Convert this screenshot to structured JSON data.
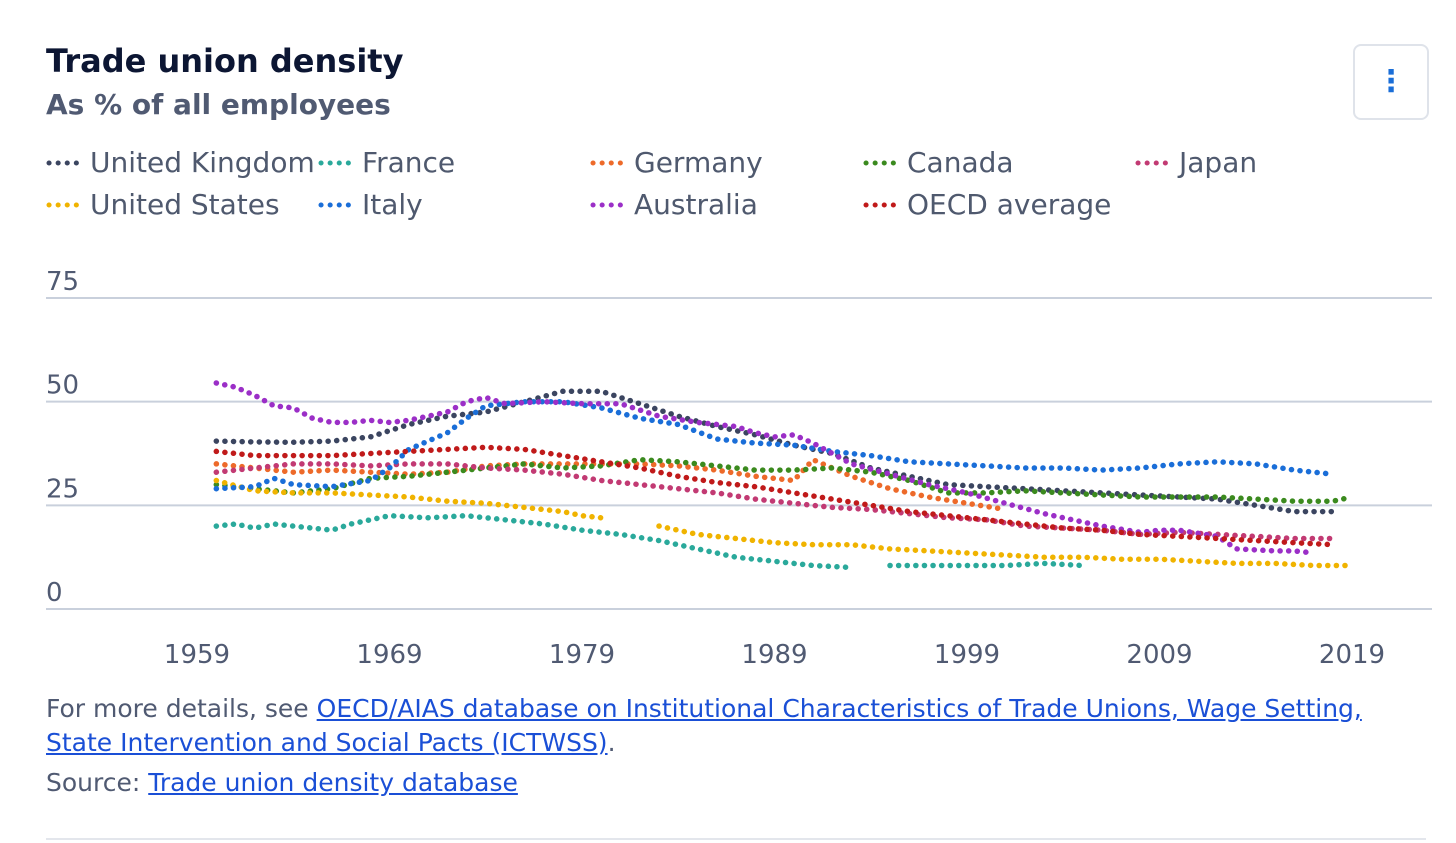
{
  "header": {
    "title": "Trade union density",
    "subtitle": "As % of all employees",
    "menu_icon": "more-vertical-icon",
    "menu_glyph": "⋮"
  },
  "legend": [
    {
      "name": "United Kingdom",
      "color": "#3b4560"
    },
    {
      "name": "France",
      "color": "#2aa99b"
    },
    {
      "name": "Germany",
      "color": "#ed6a2a"
    },
    {
      "name": "Canada",
      "color": "#3b8a1e"
    },
    {
      "name": "Japan",
      "color": "#c23a73"
    },
    {
      "name": "United States",
      "color": "#f0b300"
    },
    {
      "name": "Italy",
      "color": "#1a6ed8"
    },
    {
      "name": "Australia",
      "color": "#9b2fc7"
    },
    {
      "name": "OECD average",
      "color": "#c01a1a"
    }
  ],
  "chart_data": {
    "type": "line",
    "title": "Trade union density",
    "subtitle": "As % of all employees",
    "xlabel": "",
    "ylabel": "",
    "xlim": [
      1959,
      2019
    ],
    "ylim": [
      0,
      75
    ],
    "yticks": [
      0,
      25,
      50,
      75
    ],
    "xticks": [
      1959,
      1969,
      1979,
      1989,
      1999,
      2009,
      2019
    ],
    "grid": true,
    "line_style": "dotted",
    "legend_position": "top",
    "series": [
      {
        "name": "United Kingdom",
        "color": "#3b4560",
        "points": [
          [
            1960,
            40.5
          ],
          [
            1962,
            40.3
          ],
          [
            1964,
            40.2
          ],
          [
            1966,
            40.5
          ],
          [
            1968,
            41.5
          ],
          [
            1970,
            44.5
          ],
          [
            1972,
            46.5
          ],
          [
            1974,
            47.5
          ],
          [
            1976,
            50
          ],
          [
            1978,
            52.5
          ],
          [
            1980,
            52.5
          ],
          [
            1982,
            49.5
          ],
          [
            1984,
            46.5
          ],
          [
            1986,
            44
          ],
          [
            1988,
            42
          ],
          [
            1990,
            39.5
          ],
          [
            1992,
            37.5
          ],
          [
            1994,
            34
          ],
          [
            1996,
            32
          ],
          [
            1998,
            30
          ],
          [
            2000,
            29.5
          ],
          [
            2002,
            29
          ],
          [
            2004,
            28.5
          ],
          [
            2006,
            28
          ],
          [
            2008,
            27.5
          ],
          [
            2010,
            27
          ],
          [
            2012,
            26.5
          ],
          [
            2014,
            25
          ],
          [
            2016,
            23.5
          ],
          [
            2018,
            23.5
          ]
        ]
      },
      {
        "name": "France",
        "color": "#2aa99b",
        "segments": [
          [
            [
              1960,
              20
            ],
            [
              1961,
              20.5
            ],
            [
              1962,
              19.5
            ],
            [
              1963,
              20.5
            ],
            [
              1964,
              20
            ],
            [
              1965,
              19.5
            ],
            [
              1966,
              19
            ],
            [
              1967,
              20.5
            ],
            [
              1969,
              22.5
            ],
            [
              1971,
              22
            ],
            [
              1973,
              22.5
            ],
            [
              1975,
              21.5
            ],
            [
              1977,
              20.5
            ],
            [
              1979,
              19
            ],
            [
              1981,
              18
            ],
            [
              1983,
              16.5
            ],
            [
              1985,
              14.5
            ],
            [
              1987,
              12.5
            ],
            [
              1989,
              11.5
            ],
            [
              1991,
              10.5
            ],
            [
              1993,
              10
            ]
          ],
          [
            [
              1995,
              10.5
            ],
            [
              1997,
              10.5
            ],
            [
              1999,
              10.5
            ],
            [
              2001,
              10.5
            ],
            [
              2003,
              11
            ],
            [
              2005,
              10.5
            ]
          ],
          [
            [
              2008,
              11
            ]
          ]
        ]
      },
      {
        "name": "Germany",
        "color": "#ed6a2a",
        "points": [
          [
            1960,
            35
          ],
          [
            1962,
            34
          ],
          [
            1964,
            33
          ],
          [
            1966,
            33.5
          ],
          [
            1968,
            33
          ],
          [
            1970,
            32.5
          ],
          [
            1972,
            33
          ],
          [
            1974,
            34.5
          ],
          [
            1976,
            35
          ],
          [
            1978,
            35
          ],
          [
            1980,
            35
          ],
          [
            1982,
            35
          ],
          [
            1984,
            34.5
          ],
          [
            1986,
            33.5
          ],
          [
            1988,
            32
          ],
          [
            1990,
            31
          ],
          [
            1991,
            36
          ],
          [
            1993,
            32
          ],
          [
            1995,
            29
          ],
          [
            1997,
            27
          ],
          [
            1999,
            25.5
          ],
          [
            2001,
            24
          ]
        ]
      },
      {
        "name": "Canada",
        "color": "#3b8a1e",
        "points": [
          [
            1960,
            30
          ],
          [
            1962,
            29
          ],
          [
            1964,
            28
          ],
          [
            1966,
            29
          ],
          [
            1968,
            31.5
          ],
          [
            1970,
            32
          ],
          [
            1972,
            33
          ],
          [
            1974,
            34
          ],
          [
            1976,
            35
          ],
          [
            1978,
            34
          ],
          [
            1980,
            34.5
          ],
          [
            1982,
            36
          ],
          [
            1984,
            35.5
          ],
          [
            1986,
            34.5
          ],
          [
            1988,
            33.5
          ],
          [
            1990,
            33.5
          ],
          [
            1992,
            34
          ],
          [
            1994,
            33
          ],
          [
            1996,
            31
          ],
          [
            1998,
            28
          ],
          [
            2000,
            28
          ],
          [
            2002,
            28.5
          ],
          [
            2004,
            28
          ],
          [
            2006,
            27.5
          ],
          [
            2008,
            27
          ],
          [
            2010,
            27
          ],
          [
            2012,
            27
          ],
          [
            2014,
            26.5
          ],
          [
            2016,
            26
          ],
          [
            2018,
            26
          ],
          [
            2019,
            27
          ]
        ]
      },
      {
        "name": "Japan",
        "color": "#c23a73",
        "points": [
          [
            1960,
            33
          ],
          [
            1962,
            34
          ],
          [
            1964,
            35
          ],
          [
            1966,
            35
          ],
          [
            1968,
            34.5
          ],
          [
            1970,
            35
          ],
          [
            1972,
            35
          ],
          [
            1974,
            34
          ],
          [
            1976,
            33.5
          ],
          [
            1978,
            32.5
          ],
          [
            1980,
            31
          ],
          [
            1982,
            30
          ],
          [
            1984,
            29
          ],
          [
            1986,
            28
          ],
          [
            1988,
            26.5
          ],
          [
            1990,
            25.5
          ],
          [
            1992,
            24.5
          ],
          [
            1994,
            24
          ],
          [
            1996,
            23
          ],
          [
            1998,
            22
          ],
          [
            2000,
            21.5
          ],
          [
            2002,
            20
          ],
          [
            2004,
            19.5
          ],
          [
            2006,
            19
          ],
          [
            2008,
            18
          ],
          [
            2010,
            18.5
          ],
          [
            2012,
            18
          ],
          [
            2014,
            17.5
          ],
          [
            2016,
            17
          ],
          [
            2018,
            17
          ]
        ]
      },
      {
        "name": "United States",
        "color": "#f0b300",
        "segments": [
          [
            [
              1960,
              31
            ],
            [
              1962,
              28.5
            ],
            [
              1964,
              28
            ],
            [
              1966,
              28
            ],
            [
              1968,
              27.5
            ],
            [
              1970,
              27
            ],
            [
              1972,
              26
            ],
            [
              1974,
              25.5
            ],
            [
              1976,
              24.5
            ],
            [
              1978,
              23.5
            ],
            [
              1979,
              22.5
            ],
            [
              1980,
              22
            ]
          ],
          [
            [
              1983,
              20
            ],
            [
              1985,
              18
            ],
            [
              1987,
              17
            ],
            [
              1989,
              16
            ],
            [
              1991,
              15.5
            ],
            [
              1993,
              15.5
            ],
            [
              1995,
              14.5
            ],
            [
              1997,
              14
            ],
            [
              1999,
              13.5
            ],
            [
              2001,
              13
            ],
            [
              2003,
              12.5
            ],
            [
              2005,
              12.5
            ],
            [
              2007,
              12
            ],
            [
              2009,
              12
            ],
            [
              2011,
              11.5
            ],
            [
              2013,
              11
            ],
            [
              2015,
              11
            ],
            [
              2017,
              10.5
            ],
            [
              2019,
              10.5
            ]
          ]
        ]
      },
      {
        "name": "Italy",
        "color": "#1a6ed8",
        "points": [
          [
            1960,
            29
          ],
          [
            1962,
            29.5
          ],
          [
            1963,
            31.5
          ],
          [
            1964,
            30
          ],
          [
            1966,
            29.5
          ],
          [
            1968,
            31
          ],
          [
            1969,
            34
          ],
          [
            1970,
            38.5
          ],
          [
            1972,
            42.5
          ],
          [
            1973,
            46
          ],
          [
            1974,
            49
          ],
          [
            1976,
            50
          ],
          [
            1978,
            50
          ],
          [
            1980,
            48.5
          ],
          [
            1982,
            46
          ],
          [
            1984,
            44.5
          ],
          [
            1986,
            41
          ],
          [
            1988,
            40
          ],
          [
            1990,
            39.5
          ],
          [
            1992,
            38
          ],
          [
            1994,
            37
          ],
          [
            1996,
            35.5
          ],
          [
            1998,
            35
          ],
          [
            2000,
            34.5
          ],
          [
            2002,
            34
          ],
          [
            2004,
            34
          ],
          [
            2006,
            33.5
          ],
          [
            2008,
            34
          ],
          [
            2010,
            35
          ],
          [
            2012,
            35.5
          ],
          [
            2014,
            35
          ],
          [
            2016,
            33.5
          ],
          [
            2018,
            32.5
          ]
        ]
      },
      {
        "name": "Australia",
        "color": "#9b2fc7",
        "points": [
          [
            1960,
            54.5
          ],
          [
            1961,
            53.5
          ],
          [
            1962,
            51.5
          ],
          [
            1963,
            49
          ],
          [
            1964,
            48.5
          ],
          [
            1965,
            46
          ],
          [
            1966,
            45
          ],
          [
            1967,
            45
          ],
          [
            1968,
            45.5
          ],
          [
            1969,
            45
          ],
          [
            1970,
            45.5
          ],
          [
            1971,
            46.5
          ],
          [
            1972,
            47.5
          ],
          [
            1973,
            50
          ],
          [
            1974,
            51
          ],
          [
            1975,
            49.5
          ],
          [
            1977,
            50
          ],
          [
            1979,
            49.5
          ],
          [
            1981,
            49.5
          ],
          [
            1983,
            46.5
          ],
          [
            1985,
            45
          ],
          [
            1987,
            44
          ],
          [
            1988,
            42.5
          ],
          [
            1989,
            41.5
          ],
          [
            1990,
            42
          ],
          [
            1991,
            40
          ],
          [
            1992,
            37.5
          ],
          [
            1993,
            35
          ],
          [
            1995,
            32.5
          ],
          [
            1997,
            30
          ],
          [
            1999,
            28
          ],
          [
            2001,
            25.5
          ],
          [
            2003,
            23
          ],
          [
            2004,
            22
          ],
          [
            2006,
            20
          ],
          [
            2008,
            18.5
          ],
          [
            2009,
            19
          ],
          [
            2010,
            19
          ],
          [
            2012,
            17.5
          ],
          [
            2013,
            14.5
          ],
          [
            2015,
            14
          ],
          [
            2016,
            14
          ],
          [
            2017,
            13.5
          ]
        ]
      },
      {
        "name": "OECD average",
        "color": "#c01a1a",
        "points": [
          [
            1960,
            38
          ],
          [
            1962,
            37
          ],
          [
            1964,
            37
          ],
          [
            1966,
            37
          ],
          [
            1968,
            37.5
          ],
          [
            1970,
            38
          ],
          [
            1972,
            38.5
          ],
          [
            1974,
            39
          ],
          [
            1976,
            38.5
          ],
          [
            1978,
            37
          ],
          [
            1980,
            35.5
          ],
          [
            1982,
            34
          ],
          [
            1984,
            32
          ],
          [
            1986,
            30.5
          ],
          [
            1988,
            29.5
          ],
          [
            1990,
            28
          ],
          [
            1992,
            26.5
          ],
          [
            1994,
            25
          ],
          [
            1996,
            23.5
          ],
          [
            1998,
            22.5
          ],
          [
            2000,
            21.5
          ],
          [
            2002,
            20.5
          ],
          [
            2004,
            19.5
          ],
          [
            2006,
            19
          ],
          [
            2008,
            18
          ],
          [
            2010,
            17.5
          ],
          [
            2012,
            17
          ],
          [
            2014,
            16.5
          ],
          [
            2016,
            16
          ],
          [
            2018,
            15.5
          ]
        ]
      }
    ]
  },
  "footnote": {
    "prefix": "For more details, see ",
    "link_text": "OECD/AIAS database on Institutional Characteristics of Trade Unions, Wage Setting, State Intervention and Social Pacts (ICTWSS)",
    "suffix": "."
  },
  "source": {
    "prefix": "Source: ",
    "link_text": "Trade union density database"
  }
}
